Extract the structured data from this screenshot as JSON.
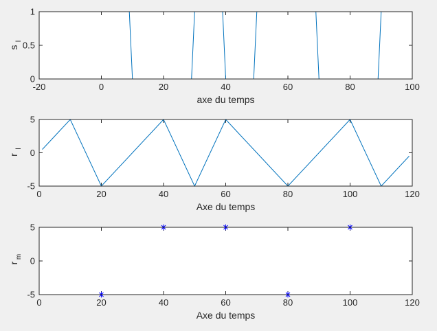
{
  "chart_data": [
    {
      "type": "line",
      "xlabel": "axe du temps",
      "ylabel": "s",
      "ylabel_sub": "l",
      "xlim": [
        -20,
        100
      ],
      "ylim": [
        0,
        1
      ],
      "xticks": [
        -20,
        0,
        20,
        40,
        60,
        80,
        100
      ],
      "yticks": [
        0,
        0.5,
        1
      ],
      "xtick_labels": [
        "-20",
        "0",
        "20",
        "40",
        "60",
        "80",
        "100"
      ],
      "ytick_labels": [
        "0",
        "0.5",
        "1"
      ],
      "color": "#0072BD",
      "marker": "none",
      "series": [
        {
          "x": [
            0,
            9,
            10,
            29,
            30,
            39,
            40,
            49,
            50,
            69,
            70,
            89,
            90,
            100
          ],
          "y": [
            1,
            1,
            0,
            0,
            1,
            1,
            0,
            0,
            1,
            1,
            0,
            0,
            1,
            1
          ]
        }
      ]
    },
    {
      "type": "line",
      "xlabel": "Axe du temps",
      "ylabel": "r",
      "ylabel_sub": "l",
      "xlim": [
        0,
        120
      ],
      "ylim": [
        -5,
        5
      ],
      "xticks": [
        0,
        20,
        40,
        60,
        80,
        100,
        120
      ],
      "yticks": [
        -5,
        0,
        5
      ],
      "xtick_labels": [
        "0",
        "20",
        "40",
        "60",
        "80",
        "100",
        "120"
      ],
      "ytick_labels": [
        "-5",
        "0",
        "5"
      ],
      "color": "#0072BD",
      "marker": "none",
      "series": [
        {
          "x": [
            1,
            10,
            20,
            40,
            50,
            60,
            80,
            100,
            110,
            119
          ],
          "y": [
            0.5,
            5,
            -5,
            5,
            -5,
            5,
            -5,
            5,
            -5,
            -0.5
          ]
        }
      ]
    },
    {
      "type": "scatter",
      "xlabel": "Axe du temps",
      "ylabel": "r",
      "ylabel_sub": "m",
      "xlim": [
        0,
        120
      ],
      "ylim": [
        -5,
        5
      ],
      "xticks": [
        0,
        20,
        40,
        60,
        80,
        100,
        120
      ],
      "yticks": [
        -5,
        0,
        5
      ],
      "xtick_labels": [
        "0",
        "20",
        "40",
        "60",
        "80",
        "100",
        "120"
      ],
      "ytick_labels": [
        "-5",
        "0",
        "5"
      ],
      "color": "#0000FF",
      "marker": "asterisk",
      "series": [
        {
          "x": [
            20,
            40,
            60,
            80,
            100
          ],
          "y": [
            -5,
            5,
            5,
            -5,
            5
          ]
        }
      ]
    }
  ]
}
